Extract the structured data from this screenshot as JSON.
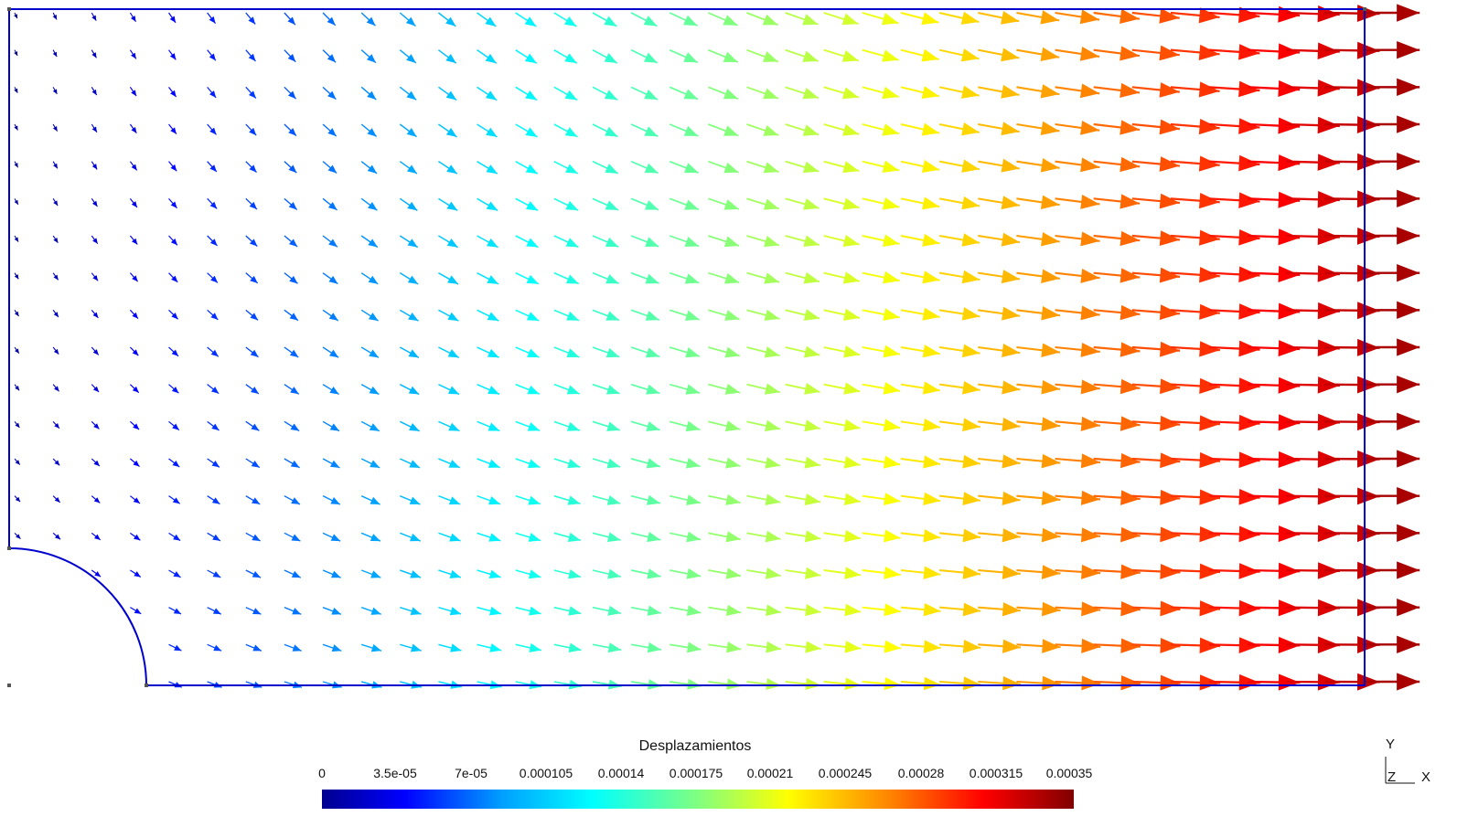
{
  "legend": {
    "title": "Desplazamientos",
    "ticks": [
      "0",
      "3.5e-05",
      "7e-05",
      "0.000105",
      "0.00014",
      "0.000175",
      "0.00021",
      "0.000245",
      "0.00028",
      "0.000315",
      "0.00035"
    ],
    "range": [
      0,
      0.00035
    ],
    "colormap": "jet",
    "colors": [
      "#00008f",
      "#0000ff",
      "#00a0ff",
      "#00ffff",
      "#80ff80",
      "#ffff00",
      "#ff8000",
      "#ff0000",
      "#800000"
    ]
  },
  "axes_triad": {
    "y_label": "Y",
    "z_label": "Z",
    "x_label": "X"
  },
  "geometry": {
    "domain_outline_color": "#0000ff",
    "hole": "quarter-circle at bottom-left corner",
    "field": "displacement vectors (glyph arrows)"
  }
}
